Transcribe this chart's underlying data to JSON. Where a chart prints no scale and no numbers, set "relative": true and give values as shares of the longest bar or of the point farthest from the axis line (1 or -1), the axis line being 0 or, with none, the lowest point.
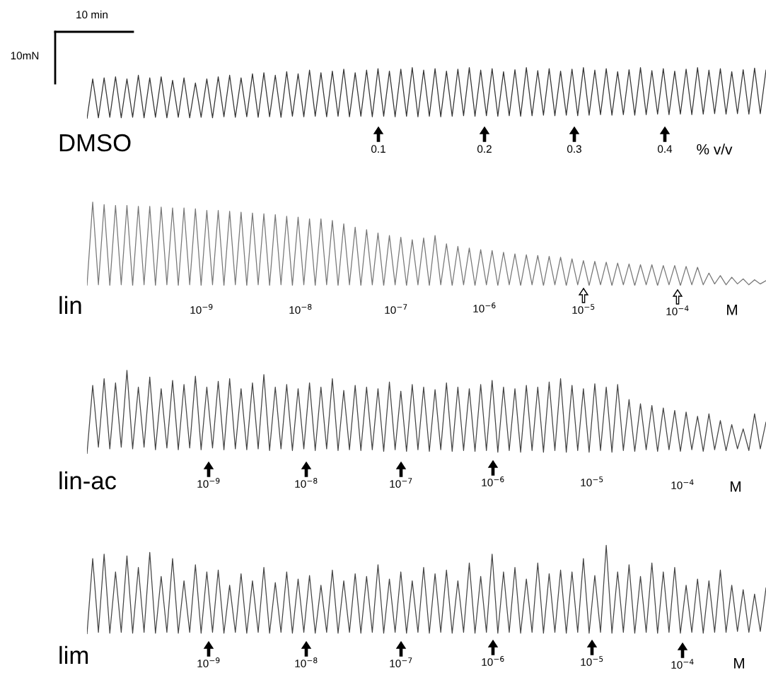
{
  "chart_data": [
    {
      "type": "line",
      "title": "DMSO",
      "relative": true,
      "annotations": [
        "10 min",
        "10mN",
        "0.1",
        "0.2",
        "0.3",
        "0.4",
        "% v/v"
      ],
      "categories": [
        null,
        null,
        null,
        null,
        null,
        null,
        null,
        null,
        null,
        null,
        null,
        null,
        null,
        null,
        null,
        null,
        null,
        null,
        null,
        null,
        null,
        null,
        null,
        null,
        null,
        null,
        null,
        null,
        null,
        null,
        null,
        null,
        null,
        null,
        null,
        null,
        null,
        null,
        null,
        null,
        null,
        null,
        null,
        null,
        null,
        null,
        null,
        null,
        null,
        null,
        null,
        null,
        null,
        null,
        null,
        null,
        null,
        null,
        null,
        null,
        null,
        null,
        null,
        null,
        null,
        null,
        null,
        null,
        null,
        null,
        null,
        null,
        null,
        null,
        null,
        null,
        null,
        null,
        null,
        null,
        null,
        null,
        null,
        null,
        null,
        null,
        null,
        null,
        null,
        null,
        null,
        null,
        null,
        null,
        null,
        null,
        null,
        null,
        null,
        null,
        null,
        null,
        null,
        null,
        null,
        null,
        null,
        null,
        null,
        null,
        null,
        null,
        null,
        null,
        null,
        null,
        null,
        null,
        null,
        null
      ],
      "series": [
        {
          "color": "#333333",
          "values": [
            0,
            0.78,
            0.02,
            0.8,
            0.03,
            0.82,
            0.02,
            0.78,
            0.03,
            0.85,
            0.02,
            0.8,
            0.03,
            0.82,
            0.02,
            0.75,
            0.03,
            0.8,
            0.02,
            0.7,
            0.03,
            0.78,
            0.02,
            0.82,
            0.04,
            0.85,
            0.03,
            0.8,
            0.04,
            0.88,
            0.03,
            0.9,
            0.04,
            0.85,
            0.03,
            0.92,
            0.05,
            0.88,
            0.04,
            0.95,
            0.05,
            0.9,
            0.04,
            0.93,
            0.05,
            0.97,
            0.04,
            0.9,
            0.05,
            0.95,
            0.04,
            0.98,
            0.05,
            0.93,
            0.04,
            0.97,
            0.05,
            1,
            0.04,
            0.95,
            0.05,
            0.98,
            0.04,
            0.93,
            0.05,
            0.97,
            0.06,
            1,
            0.05,
            0.95,
            0.06,
            0.98,
            0.05,
            0.92,
            0.06,
            0.96,
            0.05,
            1,
            0.06,
            0.94,
            0.07,
            0.98,
            0.06,
            0.93,
            0.07,
            0.97,
            0.06,
            1,
            0.07,
            0.95,
            0.08,
            0.98,
            0.07,
            0.92,
            0.08,
            0.96,
            0.07,
            1,
            0.08,
            0.94,
            0.09,
            0.98,
            0.08,
            0.93,
            0.09,
            0.97,
            0.08,
            1,
            0.09,
            0.95,
            0.1,
            0.98,
            0.09,
            0.92,
            0.1,
            0.96,
            0.09,
            0.99,
            0.1,
            0.95
          ]
        }
      ]
    },
    {
      "type": "line",
      "title": "lin",
      "relative": true,
      "annotations": [
        "10$^{−9}$",
        "10$^{−8}$",
        "10$^{−7}$",
        "10$^{−6}$",
        "10$^{−5}$",
        "10$^{−4}$",
        "M"
      ],
      "categories": [
        null,
        null,
        null,
        null,
        null,
        null,
        null,
        null,
        null,
        null,
        null,
        null,
        null,
        null,
        null,
        null,
        null,
        null,
        null,
        null,
        null,
        null,
        null,
        null,
        null,
        null,
        null,
        null,
        null,
        null,
        null,
        null,
        null,
        null,
        null,
        null,
        null,
        null,
        null,
        null,
        null,
        null,
        null,
        null,
        null,
        null,
        null,
        null,
        null,
        null,
        null,
        null,
        null,
        null,
        null,
        null,
        null,
        null,
        null,
        null,
        null,
        null,
        null,
        null,
        null,
        null,
        null,
        null,
        null,
        null,
        null,
        null,
        null,
        null,
        null,
        null,
        null,
        null,
        null,
        null,
        null,
        null,
        null,
        null,
        null,
        null,
        null,
        null,
        null,
        null,
        null,
        null,
        null,
        null,
        null,
        null,
        null,
        null,
        null,
        null,
        null,
        null,
        null,
        null,
        null,
        null,
        null,
        null,
        null,
        null,
        null,
        null,
        null,
        null,
        null,
        null,
        null,
        null,
        null,
        null
      ],
      "series": [
        {
          "color": "#777777",
          "values": [
            0,
            1,
            0.01,
            0.97,
            0,
            0.96,
            0.01,
            0.96,
            0,
            0.95,
            0.01,
            0.95,
            0,
            0.94,
            0.01,
            0.93,
            0,
            0.93,
            0.01,
            0.92,
            0,
            0.9,
            0.01,
            0.9,
            0,
            0.89,
            0.01,
            0.88,
            0,
            0.87,
            0.01,
            0.86,
            0,
            0.85,
            0.01,
            0.83,
            0,
            0.82,
            0.01,
            0.8,
            0,
            0.8,
            0.01,
            0.78,
            0,
            0.74,
            0.01,
            0.7,
            0,
            0.67,
            0.01,
            0.63,
            0,
            0.6,
            0.01,
            0.58,
            0,
            0.55,
            0.01,
            0.57,
            0,
            0.6,
            0.01,
            0.5,
            0,
            0.47,
            0.01,
            0.45,
            0,
            0.43,
            0.01,
            0.42,
            0,
            0.4,
            0.01,
            0.38,
            0,
            0.37,
            0.01,
            0.36,
            0,
            0.35,
            0.01,
            0.34,
            0,
            0.32,
            0.01,
            0.3,
            0,
            0.29,
            0.01,
            0.28,
            0,
            0.27,
            0.01,
            0.26,
            0,
            0.25,
            0.01,
            0.25,
            0,
            0.24,
            0.01,
            0.24,
            0,
            0.23,
            0.01,
            0.22,
            0.01,
            0.15,
            0.02,
            0.12,
            0.01,
            0.1,
            0.02,
            0.08,
            0.01,
            0.07,
            0.02,
            0.06
          ]
        }
      ]
    },
    {
      "type": "line",
      "title": "lin-ac",
      "relative": true,
      "annotations": [
        "10$^{−9}$",
        "10$^{−8}$",
        "10$^{−7}$",
        "10$^{−6}$",
        "10$^{−5}$",
        "10$^{−4}$",
        "M"
      ],
      "categories": [
        null,
        null,
        null,
        null,
        null,
        null,
        null,
        null,
        null,
        null,
        null,
        null,
        null,
        null,
        null,
        null,
        null,
        null,
        null,
        null,
        null,
        null,
        null,
        null,
        null,
        null,
        null,
        null,
        null,
        null,
        null,
        null,
        null,
        null,
        null,
        null,
        null,
        null,
        null,
        null,
        null,
        null,
        null,
        null,
        null,
        null,
        null,
        null,
        null,
        null,
        null,
        null,
        null,
        null,
        null,
        null,
        null,
        null,
        null,
        null,
        null,
        null,
        null,
        null,
        null,
        null,
        null,
        null,
        null,
        null,
        null,
        null,
        null,
        null,
        null,
        null,
        null,
        null,
        null,
        null,
        null,
        null,
        null,
        null,
        null,
        null,
        null,
        null,
        null,
        null,
        null,
        null,
        null,
        null,
        null,
        null,
        null,
        null,
        null,
        null,
        null,
        null,
        null,
        null,
        null,
        null,
        null,
        null,
        null,
        null,
        null,
        null,
        null,
        null,
        null,
        null,
        null,
        null,
        null,
        null
      ],
      "series": [
        {
          "color": "#444444",
          "values": [
            0,
            0.82,
            0.08,
            0.9,
            0.06,
            0.85,
            0.08,
            1,
            0.06,
            0.8,
            0.08,
            0.92,
            0.05,
            0.78,
            0.07,
            0.88,
            0.05,
            0.83,
            0.07,
            0.93,
            0.05,
            0.8,
            0.07,
            0.87,
            0.05,
            0.9,
            0.06,
            0.78,
            0.05,
            0.85,
            0.06,
            0.95,
            0.04,
            0.8,
            0.06,
            0.83,
            0.04,
            0.78,
            0.06,
            0.85,
            0.04,
            0.8,
            0.06,
            0.9,
            0.04,
            0.76,
            0.05,
            0.82,
            0.04,
            0.8,
            0.05,
            0.78,
            0.03,
            0.86,
            0.05,
            0.75,
            0.03,
            0.83,
            0.05,
            0.8,
            0.03,
            0.77,
            0.05,
            0.85,
            0.03,
            0.8,
            0.04,
            0.78,
            0.03,
            0.83,
            0.04,
            0.88,
            0.02,
            0.8,
            0.04,
            0.78,
            0.02,
            0.82,
            0.04,
            0.8,
            0.02,
            0.86,
            0.04,
            0.9,
            0.02,
            0.82,
            0.04,
            0.78,
            0.02,
            0.84,
            0.04,
            0.8,
            0.02,
            0.83,
            0.04,
            0.65,
            0.03,
            0.6,
            0.05,
            0.58,
            0.03,
            0.55,
            0.05,
            0.52,
            0.03,
            0.5,
            0.05,
            0.45,
            0.03,
            0.48,
            0.05,
            0.4,
            0.04,
            0.35,
            0.06,
            0.3,
            0.04,
            0.48,
            0.06,
            0.38
          ]
        }
      ]
    },
    {
      "type": "line",
      "title": "lim",
      "relative": true,
      "annotations": [
        "10$^{−9}$",
        "10$^{−8}$",
        "10$^{−7}$",
        "10$^{−6}$",
        "10$^{−5}$",
        "10$^{−4}$",
        "M"
      ],
      "categories": [
        null,
        null,
        null,
        null,
        null,
        null,
        null,
        null,
        null,
        null,
        null,
        null,
        null,
        null,
        null,
        null,
        null,
        null,
        null,
        null,
        null,
        null,
        null,
        null,
        null,
        null,
        null,
        null,
        null,
        null,
        null,
        null,
        null,
        null,
        null,
        null,
        null,
        null,
        null,
        null,
        null,
        null,
        null,
        null,
        null,
        null,
        null,
        null,
        null,
        null,
        null,
        null,
        null,
        null,
        null,
        null,
        null,
        null,
        null,
        null,
        null,
        null,
        null,
        null,
        null,
        null,
        null,
        null,
        null,
        null,
        null,
        null,
        null,
        null,
        null,
        null,
        null,
        null,
        null,
        null,
        null,
        null,
        null,
        null,
        null,
        null,
        null,
        null,
        null,
        null,
        null,
        null,
        null,
        null,
        null,
        null,
        null,
        null,
        null,
        null,
        null,
        null,
        null,
        null,
        null,
        null,
        null,
        null,
        null,
        null,
        null,
        null,
        null,
        null,
        null,
        null,
        null,
        null,
        null,
        null
      ],
      "series": [
        {
          "color": "#444444",
          "values": [
            0,
            0.85,
            0.02,
            0.9,
            0.01,
            0.7,
            0.02,
            0.88,
            0.01,
            0.75,
            0.02,
            0.92,
            0.01,
            0.65,
            0.02,
            0.85,
            0.01,
            0.6,
            0.02,
            0.78,
            0.01,
            0.7,
            0.02,
            0.72,
            0.01,
            0.55,
            0.02,
            0.68,
            0.01,
            0.6,
            0.02,
            0.75,
            0.01,
            0.58,
            0.02,
            0.7,
            0.01,
            0.62,
            0.02,
            0.66,
            0.01,
            0.55,
            0.02,
            0.72,
            0.01,
            0.6,
            0.02,
            0.68,
            0.01,
            0.65,
            0.02,
            0.78,
            0.01,
            0.62,
            0.02,
            0.7,
            0.01,
            0.6,
            0.02,
            0.75,
            0.01,
            0.68,
            0.02,
            0.72,
            0.01,
            0.6,
            0.02,
            0.8,
            0.01,
            0.65,
            0.02,
            0.9,
            0.01,
            0.7,
            0.02,
            0.75,
            0.01,
            0.62,
            0.02,
            0.8,
            0.01,
            0.68,
            0.02,
            0.72,
            0.01,
            0.7,
            0.02,
            0.85,
            0.01,
            0.66,
            0.02,
            1,
            0.01,
            0.7,
            0.02,
            0.78,
            0.01,
            0.65,
            0.02,
            0.8,
            0.01,
            0.7,
            0.02,
            0.75,
            0.01,
            0.55,
            0.02,
            0.62,
            0.01,
            0.6,
            0.02,
            0.72,
            0.02,
            0.55,
            0.03,
            0.5,
            0.02,
            0.45,
            0.03,
            0.52
          ]
        }
      ]
    }
  ]
}
